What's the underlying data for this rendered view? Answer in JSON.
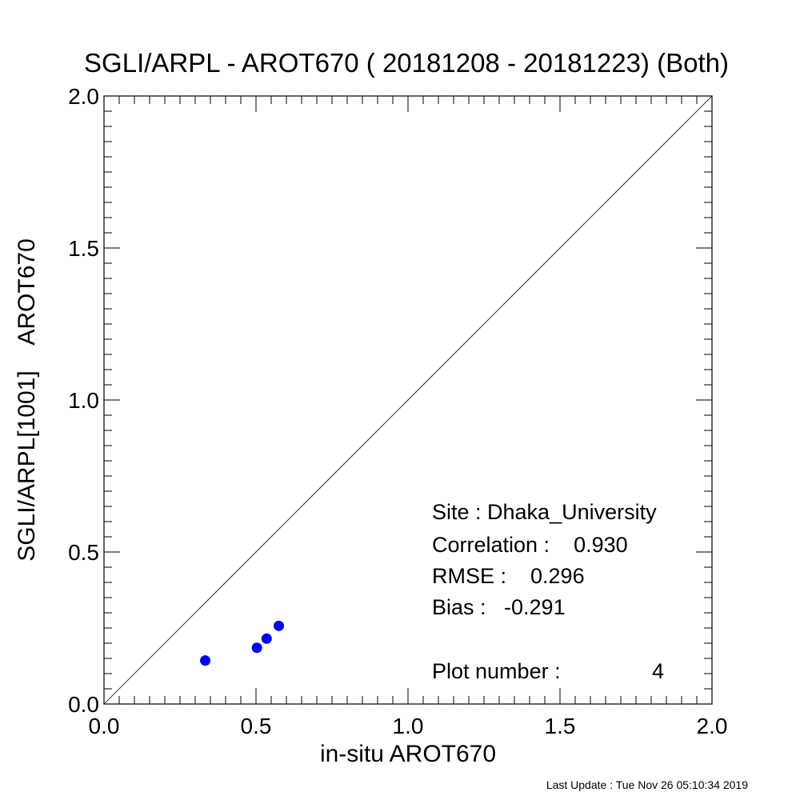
{
  "chart_data": {
    "type": "scatter",
    "title": "SGLI/ARPL - AROT670 ( 20181208 - 20181223) (Both)",
    "xlabel": "in-situ AROT670",
    "ylabel": "SGLI/ARPL[1001]    AROT670",
    "xlim": [
      0,
      2
    ],
    "ylim": [
      0,
      2
    ],
    "x_ticks": [
      "0.0",
      "0.5",
      "1.0",
      "1.5",
      "2.0"
    ],
    "y_ticks": [
      "0.0",
      "0.5",
      "1.0",
      "1.5",
      "2.0"
    ],
    "reference_line": "1:1",
    "grid": false,
    "point_color": "#0000ff",
    "series": [
      {
        "points": [
          {
            "x": 0.333,
            "y": 0.143
          },
          {
            "x": 0.503,
            "y": 0.185
          },
          {
            "x": 0.535,
            "y": 0.215
          },
          {
            "x": 0.575,
            "y": 0.257
          }
        ]
      }
    ],
    "annotations": {
      "site": "Site : Dhaka_University",
      "correlation": "Correlation :    0.930",
      "rmse": "RMSE :    0.296",
      "bias": "Bias :   -0.291",
      "plot_number": "Plot number :",
      "plot_number_value": "4"
    }
  },
  "footer": "Last Update : Tue Nov 26 05:10:34 2019"
}
